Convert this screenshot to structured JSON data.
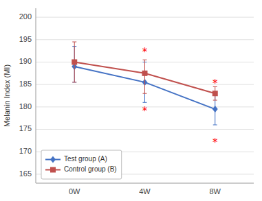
{
  "chart_data": {
    "type": "line",
    "categories": [
      "0W",
      "4W",
      "8W"
    ],
    "series": [
      {
        "name": "Test group (A)",
        "color": "#4472C4",
        "marker": "diamond",
        "values": [
          189.0,
          185.5,
          179.5
        ],
        "error_lower": [
          3.5,
          4.5,
          3.5
        ],
        "error_upper": [
          4.5,
          4.5,
          3.5
        ]
      },
      {
        "name": "Control group (B)",
        "color": "#C0504D",
        "marker": "square",
        "values": [
          190.0,
          187.5,
          183.0
        ],
        "error_lower": [
          4.5,
          4.5,
          1.5
        ],
        "error_upper": [
          4.5,
          3.0,
          1.5
        ]
      }
    ],
    "annotations": [
      {
        "text": "*",
        "category": "4W",
        "y": 192.5,
        "color": "#FF0000"
      },
      {
        "text": "*",
        "category": "4W",
        "y": 180.0,
        "color": "#FF0000"
      },
      {
        "text": "*",
        "category": "8W",
        "y": 185.5,
        "color": "#FF0000"
      },
      {
        "text": "*",
        "category": "8W",
        "y": 173.0,
        "color": "#FF0000"
      }
    ],
    "ylabel": "Melanin Index (MI)",
    "ylim": [
      163,
      202
    ],
    "yticks": [
      165,
      170,
      175,
      180,
      185,
      190,
      195,
      200
    ],
    "grid": true,
    "legend": "lower left"
  }
}
